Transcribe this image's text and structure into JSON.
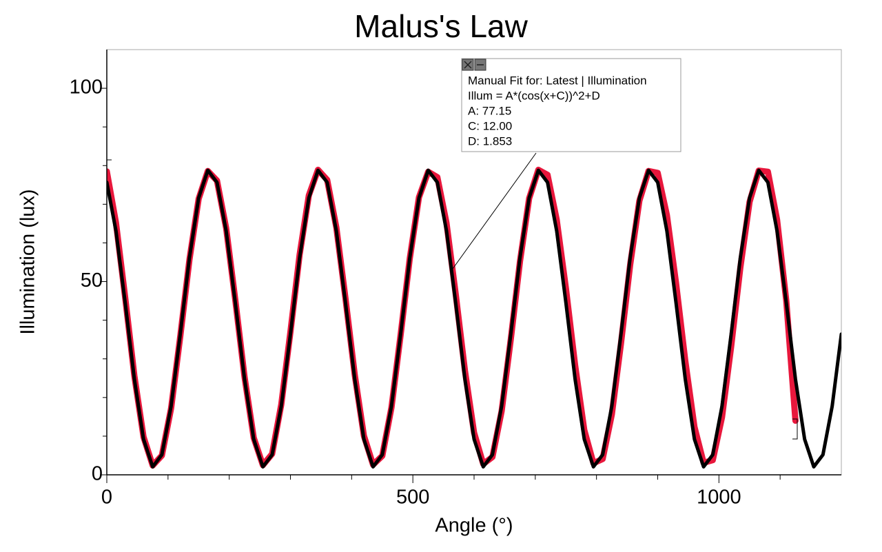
{
  "chart_data": {
    "type": "line",
    "title": "Malus's Law",
    "x_label": "Angle (°)",
    "y_label": "Illumination (lux)",
    "y_label_color": "#e8173c",
    "xlim": [
      0,
      1200
    ],
    "ylim": [
      0,
      110
    ],
    "xticks": [
      0,
      500,
      1000
    ],
    "yticks": [
      0,
      50,
      100
    ],
    "xminorticks": [
      100,
      200,
      300,
      400,
      600,
      700,
      800,
      900,
      1100
    ],
    "yminorticks": [
      10,
      20,
      30,
      40,
      60,
      70,
      80,
      90
    ],
    "series": [
      {
        "name": "Latest | Illumination",
        "color": "#e8173c",
        "width": 9,
        "x": [
          0,
          15,
          30,
          45,
          60,
          75,
          90,
          105,
          120,
          135,
          150,
          165,
          180,
          195,
          210,
          225,
          240,
          255,
          270,
          285,
          300,
          315,
          330,
          345,
          360,
          375,
          390,
          405,
          420,
          435,
          450,
          465,
          480,
          495,
          510,
          525,
          540,
          555,
          570,
          585,
          600,
          615,
          630,
          645,
          660,
          675,
          690,
          705,
          720,
          735,
          750,
          765,
          780,
          795,
          810,
          825,
          840,
          855,
          870,
          885,
          900,
          915,
          930,
          945,
          960,
          975,
          990,
          1005,
          1020,
          1035,
          1050,
          1065,
          1080,
          1095,
          1110,
          1125
        ],
        "values": [
          78.5,
          65.2,
          45.8,
          25.6,
          9.8,
          2.4,
          5.0,
          17.2,
          35.8,
          55.6,
          71.4,
          78.6,
          76.1,
          63.8,
          45.2,
          25.3,
          9.6,
          2.5,
          5.4,
          18.2,
          37.0,
          56.9,
          72.3,
          78.9,
          76.3,
          64.0,
          45.6,
          25.9,
          10.1,
          2.6,
          4.9,
          17.4,
          36.2,
          56.0,
          71.8,
          78.4,
          77.0,
          65.1,
          46.8,
          27.0,
          10.9,
          2.8,
          4.6,
          16.5,
          35.1,
          55.2,
          71.5,
          78.9,
          77.6,
          66.0,
          48.2,
          28.4,
          11.6,
          3.0,
          4.1,
          15.6,
          34.0,
          54.3,
          70.9,
          78.6,
          78.1,
          67.2,
          49.6,
          29.5,
          12.4,
          3.1,
          3.8,
          14.9,
          33.2,
          53.6,
          70.6,
          78.7,
          78.4,
          66.0,
          45.0,
          14.0
        ]
      },
      {
        "name": "Manual Fit",
        "color": "#000000",
        "width": 5,
        "x": [
          0,
          15,
          30,
          45,
          60,
          75,
          90,
          105,
          120,
          135,
          150,
          165,
          180,
          195,
          210,
          225,
          240,
          255,
          270,
          285,
          300,
          315,
          330,
          345,
          360,
          375,
          390,
          405,
          420,
          435,
          450,
          465,
          480,
          495,
          510,
          525,
          540,
          555,
          570,
          585,
          600,
          615,
          630,
          645,
          660,
          675,
          690,
          705,
          720,
          735,
          750,
          765,
          780,
          795,
          810,
          825,
          840,
          855,
          870,
          885,
          900,
          915,
          930,
          945,
          960,
          975,
          990,
          1005,
          1020,
          1035,
          1050,
          1065,
          1080,
          1095,
          1110,
          1125,
          1140,
          1155,
          1170,
          1185,
          1200
        ],
        "values": [
          75.67,
          63.1,
          44.46,
          24.74,
          9.22,
          2.06,
          5.19,
          17.75,
          36.39,
          56.12,
          71.63,
          78.79,
          75.67,
          63.1,
          44.46,
          24.74,
          9.22,
          2.06,
          5.19,
          17.75,
          36.39,
          56.12,
          71.63,
          78.79,
          75.67,
          63.1,
          44.46,
          24.74,
          9.22,
          2.06,
          5.19,
          17.75,
          36.39,
          56.12,
          71.63,
          78.79,
          75.67,
          63.1,
          44.46,
          24.74,
          9.22,
          2.06,
          5.19,
          17.75,
          36.39,
          56.12,
          71.63,
          78.79,
          75.67,
          63.1,
          44.46,
          24.74,
          9.22,
          2.06,
          5.19,
          17.75,
          36.39,
          56.12,
          71.63,
          78.79,
          75.67,
          63.1,
          44.46,
          24.74,
          9.22,
          2.06,
          5.19,
          17.75,
          36.39,
          56.12,
          71.63,
          78.79,
          75.67,
          63.1,
          44.46,
          24.74,
          9.22,
          2.06,
          5.19,
          17.75,
          36.39
        ]
      }
    ],
    "annotation": {
      "title": "Manual Fit for: Latest | Illumination",
      "equation": "Illum = A*(cos(x+C))^2+D",
      "params": [
        "A: 77.15",
        "C: 12.00",
        "D: 1.853"
      ]
    }
  }
}
